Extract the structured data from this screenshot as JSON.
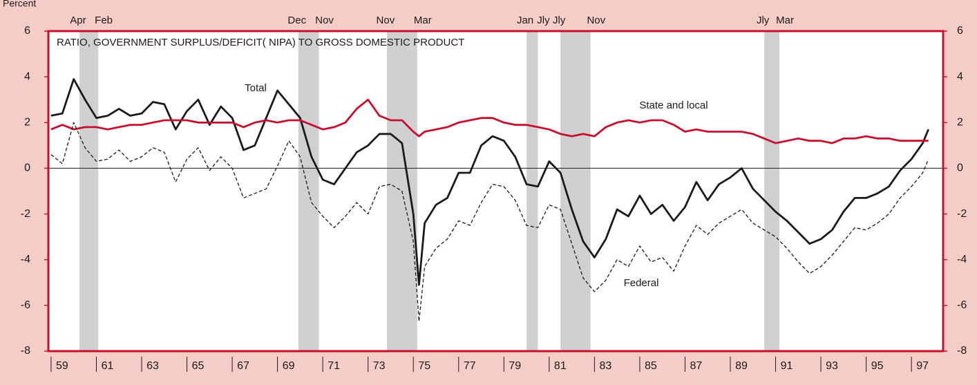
{
  "chart_data": {
    "type": "line",
    "title": "RATIO, GOVERNMENT SURPLUS/DEFICIT( NIPA) TO GROSS DOMESTIC PRODUCT",
    "y_label": "Percent",
    "x": [
      1959,
      1959.5,
      1960,
      1960.5,
      1961,
      1961.5,
      1962,
      1962.5,
      1963,
      1963.5,
      1964,
      1964.5,
      1965,
      1965.5,
      1966,
      1966.5,
      1967,
      1967.5,
      1968,
      1968.5,
      1969,
      1969.5,
      1970,
      1970.5,
      1971,
      1971.5,
      1972,
      1972.5,
      1973,
      1973.5,
      1974,
      1974.5,
      1975,
      1975.25,
      1975.5,
      1976,
      1976.5,
      1977,
      1977.5,
      1978,
      1978.5,
      1979,
      1979.5,
      1980,
      1980.5,
      1981,
      1981.5,
      1982,
      1982.5,
      1983,
      1983.5,
      1984,
      1984.5,
      1985,
      1985.5,
      1986,
      1986.5,
      1987,
      1987.5,
      1988,
      1988.5,
      1989,
      1989.5,
      1990,
      1990.5,
      1991,
      1991.5,
      1992,
      1992.5,
      1993,
      1993.5,
      1994,
      1994.5,
      1995,
      1995.5,
      1996,
      1996.5,
      1997,
      1997.5,
      1997.75
    ],
    "series": [
      {
        "name": "Total",
        "color": "#1a1a1a",
        "dash": false,
        "values": [
          2.3,
          2.4,
          3.9,
          3.0,
          2.2,
          2.3,
          2.6,
          2.3,
          2.4,
          2.9,
          2.8,
          1.7,
          2.5,
          3.0,
          1.9,
          2.7,
          2.2,
          0.8,
          1.0,
          2.2,
          3.4,
          2.8,
          2.2,
          0.5,
          -0.5,
          -0.7,
          0.0,
          0.7,
          1.0,
          1.5,
          1.5,
          1.1,
          -2.0,
          -5.1,
          -2.4,
          -1.6,
          -1.3,
          -0.2,
          -0.2,
          1.0,
          1.4,
          1.2,
          0.5,
          -0.7,
          -0.8,
          0.3,
          -0.2,
          -1.8,
          -3.2,
          -3.9,
          -3.1,
          -1.8,
          -2.1,
          -1.2,
          -2.0,
          -1.6,
          -2.3,
          -1.7,
          -0.6,
          -1.4,
          -0.7,
          -0.4,
          0.0,
          -0.9,
          -1.4,
          -1.9,
          -2.3,
          -2.8,
          -3.3,
          -3.1,
          -2.7,
          -1.9,
          -1.3,
          -1.3,
          -1.1,
          -0.8,
          -0.1,
          0.4,
          1.1,
          1.7
        ]
      },
      {
        "name": "State and local",
        "color": "#c8102e",
        "dash": false,
        "values": [
          1.7,
          1.9,
          1.7,
          1.8,
          1.8,
          1.7,
          1.8,
          1.9,
          1.9,
          2.0,
          2.1,
          2.1,
          2.1,
          2.0,
          2.0,
          2.0,
          2.0,
          1.8,
          2.0,
          2.1,
          2.0,
          2.1,
          2.1,
          1.9,
          1.7,
          1.8,
          2.0,
          2.6,
          3.0,
          2.3,
          2.1,
          2.1,
          1.6,
          1.4,
          1.6,
          1.7,
          1.8,
          2.0,
          2.1,
          2.2,
          2.2,
          2.0,
          1.9,
          1.9,
          1.8,
          1.7,
          1.5,
          1.4,
          1.5,
          1.4,
          1.8,
          2.0,
          2.1,
          2.0,
          2.1,
          2.1,
          1.9,
          1.6,
          1.7,
          1.6,
          1.6,
          1.6,
          1.6,
          1.5,
          1.3,
          1.1,
          1.2,
          1.3,
          1.2,
          1.2,
          1.1,
          1.3,
          1.3,
          1.4,
          1.3,
          1.3,
          1.2,
          1.2,
          1.2,
          1.2
        ]
      },
      {
        "name": "Federal",
        "color": "#1a1a1a",
        "dash": true,
        "values": [
          0.6,
          0.2,
          2.0,
          0.9,
          0.3,
          0.4,
          0.8,
          0.3,
          0.5,
          0.9,
          0.7,
          -0.6,
          0.4,
          0.9,
          -0.1,
          0.5,
          0.0,
          -1.3,
          -1.1,
          -0.9,
          0.1,
          1.2,
          0.5,
          -1.5,
          -2.1,
          -2.6,
          -2.1,
          -1.5,
          -2.0,
          -0.8,
          -0.7,
          -1.0,
          -3.2,
          -6.7,
          -4.3,
          -3.5,
          -3.1,
          -2.3,
          -2.5,
          -1.5,
          -0.7,
          -0.8,
          -1.4,
          -2.5,
          -2.6,
          -1.6,
          -1.8,
          -3.3,
          -4.8,
          -5.4,
          -4.9,
          -4.0,
          -4.3,
          -3.4,
          -4.1,
          -3.9,
          -4.5,
          -3.4,
          -2.5,
          -2.9,
          -2.4,
          -2.1,
          -1.8,
          -2.4,
          -2.7,
          -3.0,
          -3.5,
          -4.1,
          -4.6,
          -4.3,
          -3.8,
          -3.2,
          -2.6,
          -2.7,
          -2.4,
          -2.0,
          -1.3,
          -0.8,
          -0.2,
          0.4
        ]
      }
    ],
    "recessions": [
      {
        "start": 1960.25,
        "end": 1961.08,
        "start_label": "Apr",
        "end_label": "Feb"
      },
      {
        "start": 1969.92,
        "end": 1970.83,
        "start_label": "Dec",
        "end_label": "Nov"
      },
      {
        "start": 1973.83,
        "end": 1975.17,
        "start_label": "Nov",
        "end_label": "Mar"
      },
      {
        "start": 1980.0,
        "end": 1980.5,
        "start_label": "Jan",
        "end_label": "Jly"
      },
      {
        "start": 1981.5,
        "end": 1982.83,
        "start_label": "Jly",
        "end_label": "Nov"
      },
      {
        "start": 1990.5,
        "end": 1991.17,
        "start_label": "Jly",
        "end_label": "Mar"
      }
    ],
    "xlim": [
      1958.88,
      1998.4
    ],
    "xticks": [
      {
        "value": 1959,
        "label": "59"
      },
      {
        "value": 1961,
        "label": "61"
      },
      {
        "value": 1963,
        "label": "63"
      },
      {
        "value": 1965,
        "label": "65"
      },
      {
        "value": 1967,
        "label": "67"
      },
      {
        "value": 1969,
        "label": "69"
      },
      {
        "value": 1971,
        "label": "71"
      },
      {
        "value": 1973,
        "label": "73"
      },
      {
        "value": 1975,
        "label": "75"
      },
      {
        "value": 1977,
        "label": "77"
      },
      {
        "value": 1979,
        "label": "79"
      },
      {
        "value": 1981,
        "label": "81"
      },
      {
        "value": 1983,
        "label": "83"
      },
      {
        "value": 1985,
        "label": "85"
      },
      {
        "value": 1987,
        "label": "87"
      },
      {
        "value": 1989,
        "label": "89"
      },
      {
        "value": 1991,
        "label": "91"
      },
      {
        "value": 1993,
        "label": "93"
      },
      {
        "value": 1995,
        "label": "95"
      },
      {
        "value": 1997,
        "label": "97"
      }
    ],
    "ylim": [
      -8,
      6
    ],
    "yticks": [
      6,
      4,
      2,
      0,
      -2,
      -4,
      -6,
      -8
    ],
    "y2lim": [
      -8,
      6
    ],
    "y2ticks": [
      6,
      4,
      2,
      0,
      -2,
      -4,
      -6,
      -8
    ],
    "zero_line": true
  }
}
